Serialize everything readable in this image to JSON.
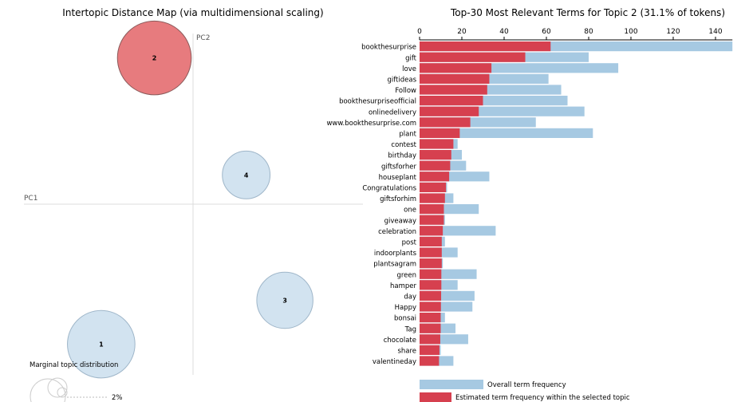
{
  "chart_data": [
    {
      "type": "scatter",
      "title": "Intertopic Distance Map (via multidimensional scaling)",
      "xlabel": "PC1",
      "ylabel": "PC2",
      "topics": [
        {
          "label": "1",
          "pc1": -0.38,
          "pc2": -0.67,
          "size_pct": 26.0,
          "selected": false
        },
        {
          "label": "2",
          "pc1": -0.16,
          "pc2": 0.7,
          "size_pct": 31.1,
          "selected": true
        },
        {
          "label": "3",
          "pc1": 0.38,
          "pc2": -0.46,
          "size_pct": 18.0,
          "selected": false
        },
        {
          "label": "4",
          "pc1": 0.22,
          "pc2": 0.14,
          "size_pct": 13.0,
          "selected": false
        }
      ],
      "marginal": {
        "label": "Marginal topic distribution",
        "ticks": [
          "2%"
        ]
      }
    },
    {
      "type": "bar",
      "title": "Top-30 Most Relevant Terms for Topic 2 (31.1% of tokens)",
      "xlim": [
        0,
        148
      ],
      "xticks": [
        0,
        20,
        40,
        60,
        80,
        100,
        120,
        140
      ],
      "categories": [
        "bookthesurprise",
        "gift",
        "love",
        "giftideas",
        "Follow",
        "bookthesurpriseofficial",
        "onlinedelivery",
        "www.bookthesurprise.com",
        "plant",
        "contest",
        "birthday",
        "giftsforher",
        "houseplant",
        "Congratulations",
        "giftsforhim",
        "one",
        "giveaway",
        "celebration",
        "post",
        "indoorplants",
        "plantsagram",
        "green",
        "hamper",
        "day",
        "Happy",
        "bonsai",
        "Tag",
        "chocolate",
        "share",
        "valentineday"
      ],
      "series": [
        {
          "name": "Overall term frequency",
          "color": "#a6c9e2",
          "values": [
            148,
            80,
            94,
            61,
            67,
            70,
            78,
            55,
            82,
            18,
            20,
            22,
            33,
            13,
            16,
            28,
            12,
            36,
            12,
            18,
            11,
            27,
            18,
            26,
            25,
            12,
            17,
            23,
            10,
            16
          ]
        },
        {
          "name": "Estimated term frequency within the selected topic",
          "color": "#d6404f",
          "values": [
            62,
            50,
            34,
            33,
            32,
            30,
            28,
            24,
            19,
            16,
            15,
            14.5,
            14,
            12.5,
            12,
            11.5,
            11.5,
            11,
            10.5,
            10.5,
            10.5,
            10.3,
            10.3,
            10.2,
            10.1,
            10,
            10,
            9.8,
            9.4,
            9.2
          ]
        }
      ]
    }
  ]
}
